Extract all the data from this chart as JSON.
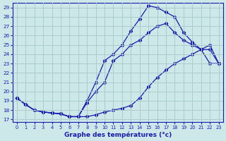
{
  "title": "Graphe des températures (°c)",
  "bg_color": "#cce8e8",
  "grid_color": "#aacccc",
  "line_color": "#1a1ab0",
  "xlim": [
    -0.5,
    23.5
  ],
  "ylim": [
    16.7,
    29.5
  ],
  "yticks": [
    17,
    18,
    19,
    20,
    21,
    22,
    23,
    24,
    25,
    26,
    27,
    28,
    29
  ],
  "xticks": [
    0,
    1,
    2,
    3,
    4,
    5,
    6,
    7,
    8,
    9,
    10,
    11,
    12,
    13,
    14,
    15,
    16,
    17,
    18,
    19,
    20,
    21,
    22,
    23
  ],
  "line1_x": [
    0,
    1,
    2,
    3,
    4,
    5,
    6,
    7,
    8,
    9,
    10,
    11,
    12,
    13,
    14,
    15,
    16,
    17,
    18,
    19,
    20,
    21,
    22,
    23
  ],
  "line1_y": [
    19.3,
    18.6,
    18.0,
    17.8,
    17.7,
    17.6,
    17.3,
    17.3,
    17.3,
    17.5,
    17.8,
    18.0,
    18.2,
    18.5,
    19.3,
    20.5,
    21.5,
    22.3,
    23.0,
    23.5,
    24.0,
    24.5,
    25.0,
    23.0
  ],
  "line2_x": [
    0,
    1,
    2,
    3,
    4,
    5,
    6,
    7,
    8,
    9,
    10,
    11,
    12,
    13,
    14,
    15,
    16,
    17,
    18,
    19,
    20,
    21,
    22,
    23
  ],
  "line2_y": [
    19.3,
    18.6,
    18.0,
    17.8,
    17.7,
    17.6,
    17.3,
    17.3,
    19.0,
    21.0,
    23.3,
    24.0,
    25.0,
    26.5,
    27.8,
    29.2,
    29.0,
    28.5,
    28.0,
    26.3,
    25.3,
    24.5,
    23.0,
    23.0
  ],
  "line3_x": [
    0,
    1,
    2,
    3,
    4,
    5,
    6,
    7,
    8,
    9,
    10,
    11,
    12,
    13,
    14,
    15,
    16,
    17,
    18,
    19,
    20,
    21,
    22,
    23
  ],
  "line3_y": [
    19.3,
    18.6,
    18.0,
    17.8,
    17.7,
    17.6,
    17.3,
    17.3,
    18.8,
    20.0,
    21.0,
    23.3,
    24.0,
    25.0,
    25.5,
    26.3,
    27.0,
    27.3,
    26.3,
    25.5,
    25.0,
    24.5,
    24.5,
    23.0
  ]
}
